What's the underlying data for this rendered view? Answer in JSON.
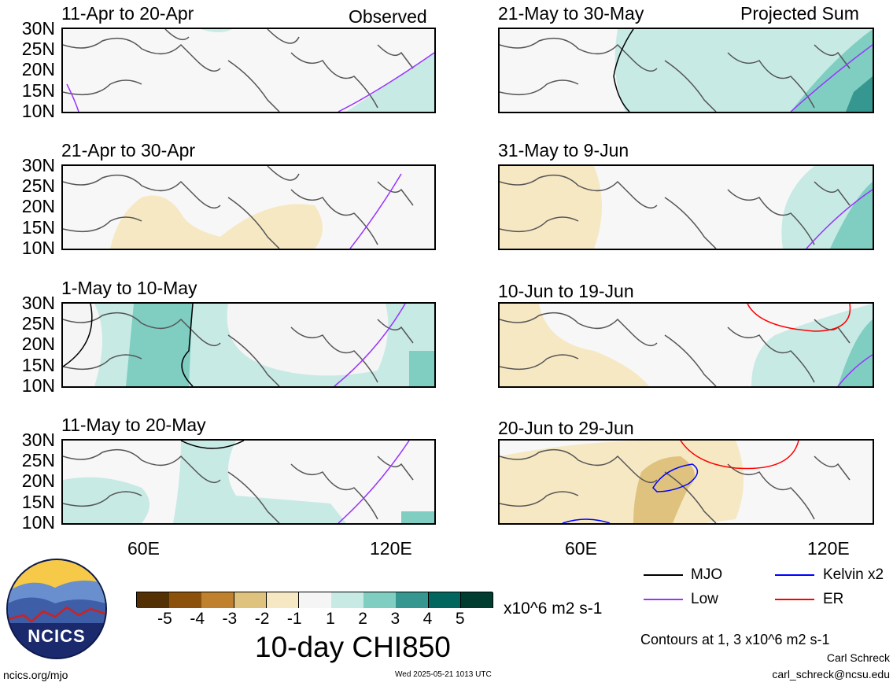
{
  "header": {
    "left_label": "Observed",
    "right_label": "Projected Sum"
  },
  "panels_left": [
    {
      "title": "11-Apr to 20-Apr"
    },
    {
      "title": "21-Apr to 30-Apr"
    },
    {
      "title": "1-May to 10-May"
    },
    {
      "title": "11-May to 20-May"
    }
  ],
  "panels_right": [
    {
      "title": "21-May to 30-May"
    },
    {
      "title": "31-May to 9-Jun"
    },
    {
      "title": "10-Jun to 19-Jun"
    },
    {
      "title": "20-Jun to 29-Jun"
    }
  ],
  "lat_labels": [
    "30N",
    "25N",
    "20N",
    "15N",
    "10N"
  ],
  "lon_labels": [
    "60E",
    "120E"
  ],
  "map_extent": {
    "lon": [
      40,
      130
    ],
    "lat": [
      10,
      30
    ]
  },
  "colorbar": {
    "ticks": [
      "-5",
      "-4",
      "-3",
      "-2",
      "-1",
      "1",
      "2",
      "3",
      "4",
      "5"
    ],
    "colors": [
      "#543005",
      "#8c510a",
      "#bf812d",
      "#dfc27d",
      "#f6e8c3",
      "#f5f5f5",
      "#c7eae5",
      "#80cdc1",
      "#35978f",
      "#01665e",
      "#003c30"
    ],
    "units": "x10^6 m2 s-1",
    "title": "10-day CHI850"
  },
  "legend": {
    "items": [
      {
        "label": "MJO",
        "color": "#000000"
      },
      {
        "label": "Kelvin x2",
        "color": "#0000ff"
      },
      {
        "label": "Low",
        "color": "#9933ff"
      },
      {
        "label": "ER",
        "color": "#ff0000"
      }
    ],
    "contours_note": "Contours at 1, 3 x10^6 m2 s-1"
  },
  "logo": {
    "text": "NCICS"
  },
  "footer": {
    "url": "ncics.org/mjo",
    "timestamp": "Wed 2025-05-21 1013 UTC",
    "author": "Carl Schreck",
    "email": "carl_schreck@ncsu.edu"
  }
}
